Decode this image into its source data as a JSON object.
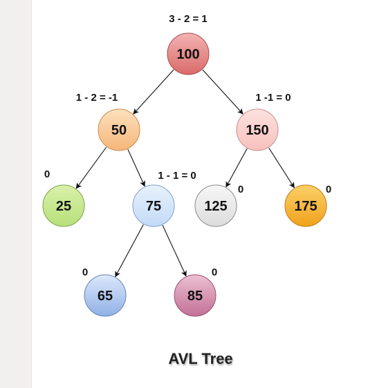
{
  "caption": "AVL Tree",
  "nodes": [
    {
      "id": "n100",
      "label": "100",
      "balance": "3 - 2 = 1",
      "fill_top": "#f4b3b3",
      "fill_bottom": "#d96a6a",
      "stroke": "#a84a4a"
    },
    {
      "id": "n50",
      "label": "50",
      "balance": "1 - 2 = -1",
      "fill_top": "#fde0bd",
      "fill_bottom": "#f5b77a",
      "stroke": "#c98d4e"
    },
    {
      "id": "n150",
      "label": "150",
      "balance": "1 -1 = 0",
      "fill_top": "#fde1df",
      "fill_bottom": "#f7c1bd",
      "stroke": "#c48f8b"
    },
    {
      "id": "n25",
      "label": "25",
      "balance": "0",
      "fill_top": "#d9f0aa",
      "fill_bottom": "#b7e07a",
      "stroke": "#7aa34a"
    },
    {
      "id": "n75",
      "label": "75",
      "balance": "1 - 1 = 0",
      "fill_top": "#e8f1fc",
      "fill_bottom": "#c3daf6",
      "stroke": "#7f9fc7"
    },
    {
      "id": "n125",
      "label": "125",
      "balance": "0",
      "fill_top": "#f7f7f7",
      "fill_bottom": "#dcdcdc",
      "stroke": "#8a8a8a"
    },
    {
      "id": "n175",
      "label": "175",
      "balance": "0",
      "fill_top": "#fcd06a",
      "fill_bottom": "#f0a21c",
      "stroke": "#c07d10"
    },
    {
      "id": "n65",
      "label": "65",
      "balance": "0",
      "fill_top": "#dde8fb",
      "fill_bottom": "#8fb0e6",
      "stroke": "#6482b6"
    },
    {
      "id": "n85",
      "label": "85",
      "balance": "0",
      "fill_top": "#ecc0d2",
      "fill_bottom": "#c27096",
      "stroke": "#9b4e72"
    }
  ],
  "edges": [
    {
      "from": "n100",
      "to": "n50"
    },
    {
      "from": "n100",
      "to": "n150"
    },
    {
      "from": "n50",
      "to": "n25"
    },
    {
      "from": "n50",
      "to": "n75"
    },
    {
      "from": "n150",
      "to": "n125"
    },
    {
      "from": "n150",
      "to": "n175"
    },
    {
      "from": "n75",
      "to": "n65"
    },
    {
      "from": "n75",
      "to": "n85"
    }
  ]
}
